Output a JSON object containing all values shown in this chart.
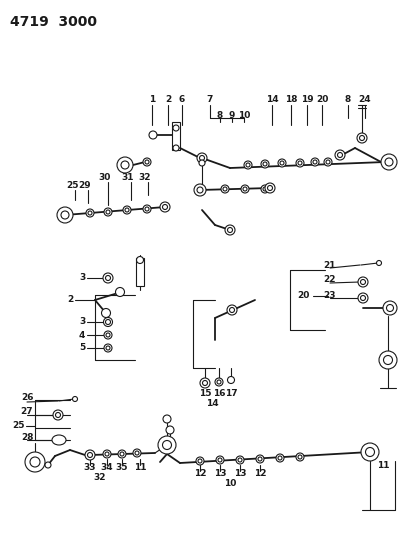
{
  "title": "4719  3000",
  "bg_color": "#ffffff",
  "line_color": "#1a1a1a",
  "title_fontsize": 10,
  "label_fontsize": 6.5,
  "fig_width": 4.11,
  "fig_height": 5.33,
  "dpi": 100
}
